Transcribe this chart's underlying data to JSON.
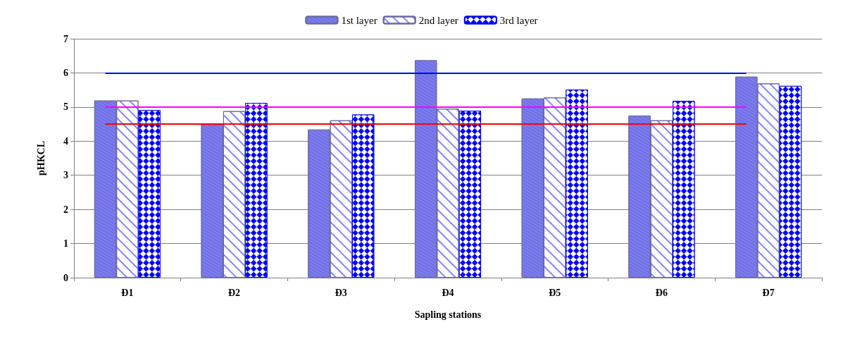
{
  "chart_data": {
    "type": "bar",
    "xlabel": "Sapling stations",
    "ylabel": "pHKCL",
    "categories": [
      "Đ1",
      "Đ2",
      "Đ3",
      "Đ4",
      "Đ5",
      "Đ6",
      "Đ7"
    ],
    "series": [
      {
        "name": "1st layer",
        "color": "#7070e8",
        "values": [
          5.19,
          4.49,
          4.34,
          6.37,
          5.25,
          4.75,
          5.89
        ]
      },
      {
        "name": "2nd layer",
        "color": "#ffffff",
        "values": [
          5.19,
          4.88,
          4.61,
          4.95,
          5.28,
          4.61,
          5.69
        ]
      },
      {
        "name": "3rd layer",
        "color": "#0000ff",
        "values": [
          4.91,
          5.12,
          4.78,
          4.89,
          5.51,
          5.18,
          5.62
        ]
      }
    ],
    "ylim": [
      0,
      7
    ],
    "yticks": [
      0,
      1,
      2,
      3,
      4,
      5,
      6,
      7
    ],
    "grid": "y",
    "legend": "top",
    "ref_lines": [
      {
        "axis": "y",
        "value": 6,
        "color": "#0000ff"
      },
      {
        "axis": "y",
        "value": 5,
        "color": "#ff00ff"
      },
      {
        "axis": "y",
        "value": 4.5,
        "color": "#ff0000"
      }
    ]
  }
}
